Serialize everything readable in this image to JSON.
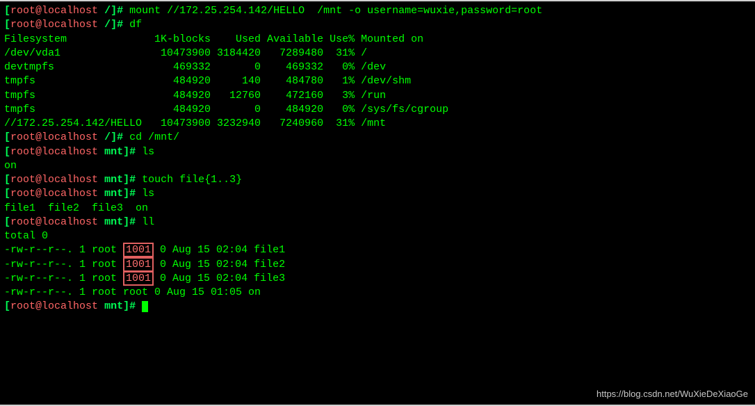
{
  "prompt_root_slash": {
    "open": "[",
    "user": "root@localhost",
    "sep": " ",
    "cwd": "/",
    "close": "]# "
  },
  "prompt_root_mnt": {
    "open": "[",
    "user": "root@localhost",
    "sep": " ",
    "cwd": "mnt",
    "close": "]# "
  },
  "commands": {
    "mount": "mount //172.25.254.142/HELLO  /mnt -o username=wuxie,password=root",
    "df": "df",
    "cd": "cd /mnt/",
    "ls1": "ls",
    "touch": "touch file{1..3}",
    "ls2": "ls",
    "ll": "ll"
  },
  "df": {
    "header": "Filesystem              1K-blocks    Used Available Use% Mounted on",
    "rows": [
      "/dev/vda1                10473900 3184420   7289480  31% /",
      "devtmpfs                   469332       0    469332   0% /dev",
      "tmpfs                      484920     140    484780   1% /dev/shm",
      "tmpfs                      484920   12760    472160   3% /run",
      "tmpfs                      484920       0    484920   0% /sys/fs/cgroup",
      "//172.25.254.142/HELLO   10473900 3232940   7240960  31% /mnt"
    ]
  },
  "ls1_out": "on",
  "ls2_out": "file1  file2  file3  on",
  "ll": {
    "total": "total 0",
    "rows": [
      {
        "pre": "-rw-r--r--. 1 root ",
        "gid": "1001",
        "post": " 0 Aug 15 02:04 file1"
      },
      {
        "pre": "-rw-r--r--. 1 root ",
        "gid": "1001",
        "post": " 0 Aug 15 02:04 file2"
      },
      {
        "pre": "-rw-r--r--. 1 root ",
        "gid": "1001",
        "post": " 0 Aug 15 02:04 file3"
      }
    ],
    "last": "-rw-r--r--. 1 root root 0 Aug 15 01:05 on"
  },
  "highlight": {
    "border_color": "#e06060",
    "text_color": "#ff7070"
  },
  "colors": {
    "bg": "#000000",
    "fg": "#00ff00",
    "prompt_user": "#ff6666"
  },
  "watermark": "https://blog.csdn.net/WuXieDeXiaoGe"
}
